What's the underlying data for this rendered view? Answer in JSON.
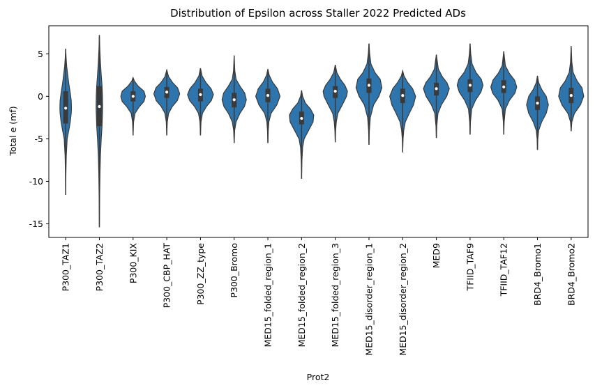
{
  "chart_data": {
    "type": "violin",
    "title": "Distribution of Epsilon across Staller 2022 Predicted ADs",
    "xlabel": "Prot2",
    "ylabel": "Total e (mf)",
    "ylim": [
      -16.6,
      8.3
    ],
    "yticks": [
      5,
      0,
      -5,
      -10,
      -15
    ],
    "grid": false,
    "legend": "none",
    "color": "#2e74ad",
    "edge_color": "#3a3a3a",
    "box_color": "#3a3a3a",
    "median_color": "#ffffff",
    "categories": [
      "P300_TAZ1",
      "P300_TAZ2",
      "P300_KIX",
      "P300_CBP_HAT",
      "P300_ZZ_type",
      "P300_Bromo",
      "MED15_folded_region_1",
      "MED15_folded_region_2",
      "MED15_folded_region_3",
      "MED15_disorder_region_1",
      "MED15_disorder_region_2",
      "MED9",
      "TFIID_TAF9",
      "TFIID_TAF12",
      "BRD4_Bromo1",
      "BRD4_Bromo2"
    ],
    "violins": [
      {
        "min": -11.6,
        "max": 5.6,
        "q1": -3.2,
        "median": -1.4,
        "q3": 0.6,
        "width": 0.55,
        "profile": [
          [
            -11.6,
            0
          ],
          [
            -9,
            0.03
          ],
          [
            -7,
            0.08
          ],
          [
            -5,
            0.2
          ],
          [
            -4,
            0.42
          ],
          [
            -3,
            0.62
          ],
          [
            -2,
            0.75
          ],
          [
            -1.4,
            0.78
          ],
          [
            -0.5,
            0.75
          ],
          [
            0.5,
            0.6
          ],
          [
            1.5,
            0.42
          ],
          [
            2.5,
            0.28
          ],
          [
            3.5,
            0.14
          ],
          [
            4.5,
            0.06
          ],
          [
            5.6,
            0
          ]
        ]
      },
      {
        "min": -15.4,
        "max": 7.2,
        "q1": -3.5,
        "median": -1.2,
        "q3": 1.2,
        "width": 0.55,
        "profile": [
          [
            -15.4,
            0
          ],
          [
            -12,
            0.03
          ],
          [
            -9,
            0.08
          ],
          [
            -7,
            0.14
          ],
          [
            -5,
            0.25
          ],
          [
            -3.5,
            0.36
          ],
          [
            -2,
            0.42
          ],
          [
            -1.2,
            0.44
          ],
          [
            0,
            0.42
          ],
          [
            1.2,
            0.36
          ],
          [
            2.5,
            0.25
          ],
          [
            4,
            0.14
          ],
          [
            5.5,
            0.06
          ],
          [
            7.2,
            0
          ]
        ]
      },
      {
        "min": -4.6,
        "max": 2.2,
        "q1": -0.6,
        "median": 0.0,
        "q3": 0.6,
        "width": 0.95,
        "profile": [
          [
            -4.6,
            0
          ],
          [
            -3,
            0.04
          ],
          [
            -2,
            0.15
          ],
          [
            -1.2,
            0.5
          ],
          [
            -0.6,
            0.85
          ],
          [
            0,
            0.96
          ],
          [
            0.6,
            0.85
          ],
          [
            1.2,
            0.4
          ],
          [
            1.8,
            0.1
          ],
          [
            2.2,
            0
          ]
        ]
      },
      {
        "min": -4.6,
        "max": 3.1,
        "q1": -0.2,
        "median": 0.5,
        "q3": 1.1,
        "width": 0.98,
        "profile": [
          [
            -4.6,
            0
          ],
          [
            -3,
            0.04
          ],
          [
            -2,
            0.14
          ],
          [
            -1.2,
            0.42
          ],
          [
            -0.5,
            0.8
          ],
          [
            0.3,
            0.98
          ],
          [
            1,
            0.82
          ],
          [
            1.6,
            0.45
          ],
          [
            2.3,
            0.14
          ],
          [
            3.1,
            0
          ]
        ]
      },
      {
        "min": -4.6,
        "max": 3.3,
        "q1": -0.6,
        "median": 0.2,
        "q3": 0.9,
        "width": 0.98,
        "profile": [
          [
            -4.6,
            0
          ],
          [
            -3,
            0.04
          ],
          [
            -2,
            0.15
          ],
          [
            -1.2,
            0.45
          ],
          [
            -0.5,
            0.82
          ],
          [
            0.2,
            0.98
          ],
          [
            0.9,
            0.8
          ],
          [
            1.6,
            0.42
          ],
          [
            2.4,
            0.12
          ],
          [
            3.3,
            0
          ]
        ]
      },
      {
        "min": -5.5,
        "max": 4.8,
        "q1": -1.3,
        "median": -0.4,
        "q3": 0.4,
        "width": 0.95,
        "profile": [
          [
            -5.5,
            0
          ],
          [
            -4,
            0.04
          ],
          [
            -3,
            0.15
          ],
          [
            -2,
            0.45
          ],
          [
            -1.2,
            0.8
          ],
          [
            -0.4,
            0.95
          ],
          [
            0.4,
            0.82
          ],
          [
            1.2,
            0.45
          ],
          [
            2,
            0.15
          ],
          [
            3,
            0.05
          ],
          [
            4.8,
            0
          ]
        ]
      },
      {
        "min": -5.5,
        "max": 3.2,
        "q1": -0.7,
        "median": 0.1,
        "q3": 0.9,
        "width": 0.95,
        "profile": [
          [
            -5.5,
            0
          ],
          [
            -4,
            0.03
          ],
          [
            -3,
            0.08
          ],
          [
            -2,
            0.25
          ],
          [
            -1,
            0.7
          ],
          [
            0,
            0.95
          ],
          [
            0.9,
            0.75
          ],
          [
            1.7,
            0.35
          ],
          [
            2.5,
            0.1
          ],
          [
            3.2,
            0
          ]
        ]
      },
      {
        "min": -9.7,
        "max": 0.7,
        "q1": -3.3,
        "median": -2.6,
        "q3": -1.8,
        "width": 0.95,
        "profile": [
          [
            -9.7,
            0
          ],
          [
            -7.5,
            0.03
          ],
          [
            -6,
            0.08
          ],
          [
            -5,
            0.2
          ],
          [
            -4,
            0.55
          ],
          [
            -3,
            0.9
          ],
          [
            -2.2,
            0.95
          ],
          [
            -1.5,
            0.7
          ],
          [
            -0.8,
            0.3
          ],
          [
            0,
            0.08
          ],
          [
            0.7,
            0
          ]
        ]
      },
      {
        "min": -5.4,
        "max": 3.7,
        "q1": -0.2,
        "median": 0.6,
        "q3": 1.2,
        "width": 0.95,
        "profile": [
          [
            -5.4,
            0
          ],
          [
            -4,
            0.03
          ],
          [
            -3,
            0.08
          ],
          [
            -2,
            0.2
          ],
          [
            -1,
            0.55
          ],
          [
            0,
            0.88
          ],
          [
            0.6,
            0.95
          ],
          [
            1.3,
            0.75
          ],
          [
            2,
            0.4
          ],
          [
            2.8,
            0.12
          ],
          [
            3.7,
            0
          ]
        ]
      },
      {
        "min": -5.7,
        "max": 6.2,
        "q1": 0.4,
        "median": 1.3,
        "q3": 2.1,
        "width": 0.98,
        "profile": [
          [
            -5.7,
            0
          ],
          [
            -4,
            0.03
          ],
          [
            -2.5,
            0.1
          ],
          [
            -1,
            0.35
          ],
          [
            0,
            0.75
          ],
          [
            1,
            0.98
          ],
          [
            2,
            0.85
          ],
          [
            2.8,
            0.45
          ],
          [
            3.8,
            0.15
          ],
          [
            5,
            0.05
          ],
          [
            6.2,
            0
          ]
        ]
      },
      {
        "min": -6.6,
        "max": 3.0,
        "q1": -0.8,
        "median": 0.1,
        "q3": 0.9,
        "width": 0.98,
        "profile": [
          [
            -6.6,
            0
          ],
          [
            -5,
            0.03
          ],
          [
            -4,
            0.08
          ],
          [
            -3,
            0.2
          ],
          [
            -2,
            0.5
          ],
          [
            -1,
            0.82
          ],
          [
            0,
            0.98
          ],
          [
            0.9,
            0.75
          ],
          [
            1.7,
            0.35
          ],
          [
            2.4,
            0.1
          ],
          [
            3,
            0
          ]
        ]
      },
      {
        "min": -4.9,
        "max": 4.9,
        "q1": 0.1,
        "median": 0.9,
        "q3": 1.6,
        "width": 0.98,
        "profile": [
          [
            -4.9,
            0
          ],
          [
            -3.5,
            0.03
          ],
          [
            -2,
            0.12
          ],
          [
            -1,
            0.38
          ],
          [
            0,
            0.78
          ],
          [
            0.9,
            0.98
          ],
          [
            1.6,
            0.8
          ],
          [
            2.3,
            0.45
          ],
          [
            3.2,
            0.15
          ],
          [
            4.9,
            0
          ]
        ]
      },
      {
        "min": -4.5,
        "max": 6.2,
        "q1": 0.5,
        "median": 1.3,
        "q3": 2.0,
        "width": 0.98,
        "profile": [
          [
            -4.5,
            0
          ],
          [
            -3,
            0.03
          ],
          [
            -1.5,
            0.12
          ],
          [
            -0.5,
            0.4
          ],
          [
            0.5,
            0.82
          ],
          [
            1.3,
            0.98
          ],
          [
            2,
            0.85
          ],
          [
            2.8,
            0.45
          ],
          [
            3.8,
            0.15
          ],
          [
            5,
            0.05
          ],
          [
            6.2,
            0
          ]
        ]
      },
      {
        "min": -4.5,
        "max": 5.3,
        "q1": 0.4,
        "median": 1.1,
        "q3": 1.9,
        "width": 0.98,
        "profile": [
          [
            -4.5,
            0
          ],
          [
            -3,
            0.03
          ],
          [
            -1.5,
            0.12
          ],
          [
            -0.5,
            0.42
          ],
          [
            0.4,
            0.85
          ],
          [
            1.1,
            0.98
          ],
          [
            1.9,
            0.82
          ],
          [
            2.7,
            0.42
          ],
          [
            3.6,
            0.12
          ],
          [
            5.3,
            0
          ]
        ]
      },
      {
        "min": -6.3,
        "max": 2.4,
        "q1": -1.6,
        "median": -0.8,
        "q3": 0.0,
        "width": 0.9,
        "profile": [
          [
            -6.3,
            0
          ],
          [
            -5,
            0.03
          ],
          [
            -4,
            0.1
          ],
          [
            -3,
            0.35
          ],
          [
            -2,
            0.72
          ],
          [
            -1,
            0.9
          ],
          [
            0,
            0.72
          ],
          [
            0.8,
            0.35
          ],
          [
            1.6,
            0.1
          ],
          [
            2.4,
            0
          ]
        ]
      },
      {
        "min": -4.1,
        "max": 5.9,
        "q1": -0.8,
        "median": 0.1,
        "q3": 1.0,
        "width": 0.98,
        "profile": [
          [
            -4.1,
            0
          ],
          [
            -3,
            0.05
          ],
          [
            -2,
            0.25
          ],
          [
            -1,
            0.7
          ],
          [
            0,
            0.95
          ],
          [
            1,
            0.82
          ],
          [
            1.8,
            0.45
          ],
          [
            2.8,
            0.15
          ],
          [
            4,
            0.05
          ],
          [
            5.9,
            0
          ]
        ]
      }
    ]
  }
}
